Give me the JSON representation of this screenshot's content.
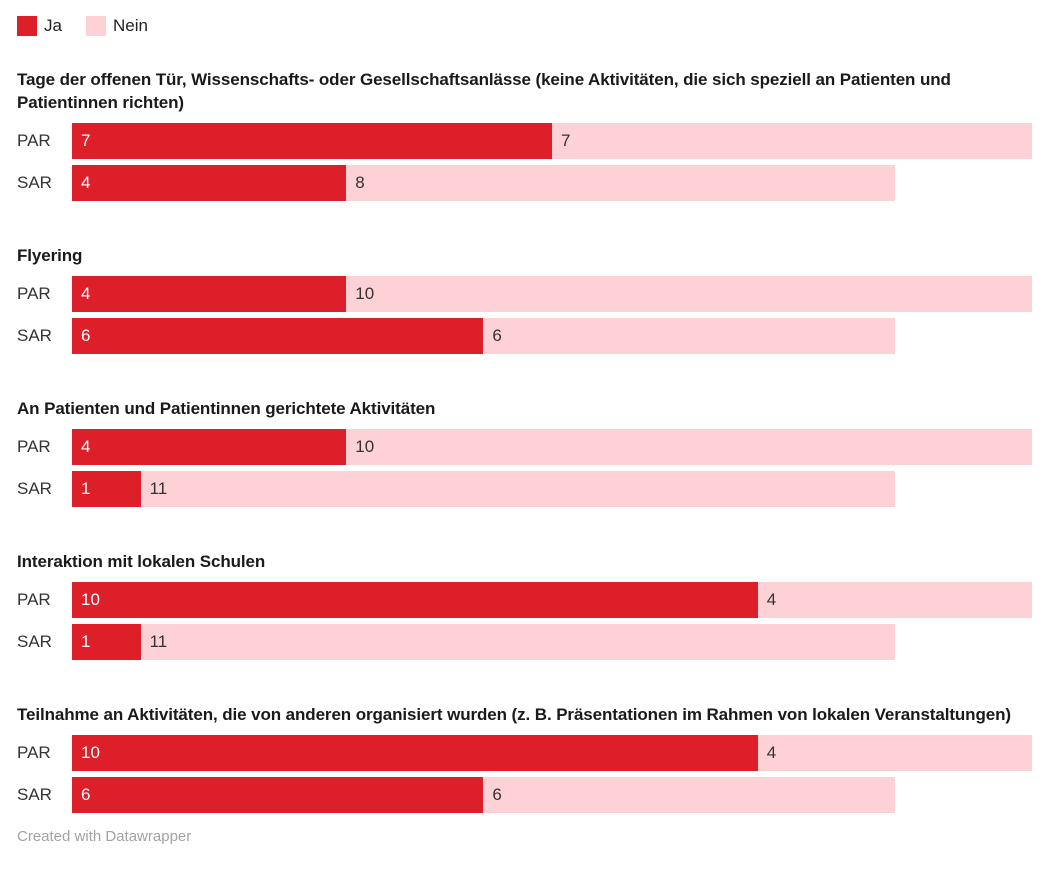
{
  "legend": {
    "position": "top-left",
    "items": [
      {
        "label": "Ja",
        "color": "#dd1f2a"
      },
      {
        "label": "Nein",
        "color": "#fdd1d6"
      }
    ]
  },
  "footer": {
    "text": "Created with Datawrapper"
  },
  "colors": {
    "ja": "#dd1f2a",
    "nein": "#fdd1d6",
    "title_text": "#1a1a1a",
    "label_text": "#333333",
    "value_on_ja": "#ffffff",
    "value_on_nein": "#333333",
    "footer_text": "#a3a3a3",
    "background": "#ffffff"
  },
  "chart_data": {
    "type": "bar",
    "subtype": "horizontal-stacked-grouped",
    "series_names": [
      "Ja",
      "Nein"
    ],
    "scale_max": 14,
    "grid": false,
    "legend_position": "top-left",
    "groups": [
      {
        "title": "Tage der offenen Tür, Wissenschafts- oder Gesellschaftsanlässe (keine Aktivitäten, die sich speziell an Patienten und Patientinnen richten)",
        "rows": [
          {
            "label": "PAR",
            "ja": 7,
            "nein": 7
          },
          {
            "label": "SAR",
            "ja": 4,
            "nein": 8
          }
        ]
      },
      {
        "title": "Flyering",
        "rows": [
          {
            "label": "PAR",
            "ja": 4,
            "nein": 10
          },
          {
            "label": "SAR",
            "ja": 6,
            "nein": 6
          }
        ]
      },
      {
        "title": "An Patienten und Patientinnen gerichtete Aktivitäten",
        "rows": [
          {
            "label": "PAR",
            "ja": 4,
            "nein": 10
          },
          {
            "label": "SAR",
            "ja": 1,
            "nein": 11
          }
        ]
      },
      {
        "title": "Interaktion mit lokalen Schulen",
        "rows": [
          {
            "label": "PAR",
            "ja": 10,
            "nein": 4
          },
          {
            "label": "SAR",
            "ja": 1,
            "nein": 11
          }
        ]
      },
      {
        "title": "Teilnahme an Aktivitäten, die von anderen organisiert wurden (z. B. Präsentationen im Rahmen von lokalen Veranstaltungen)",
        "rows": [
          {
            "label": "PAR",
            "ja": 10,
            "nein": 4
          },
          {
            "label": "SAR",
            "ja": 6,
            "nein": 6
          }
        ]
      }
    ]
  }
}
